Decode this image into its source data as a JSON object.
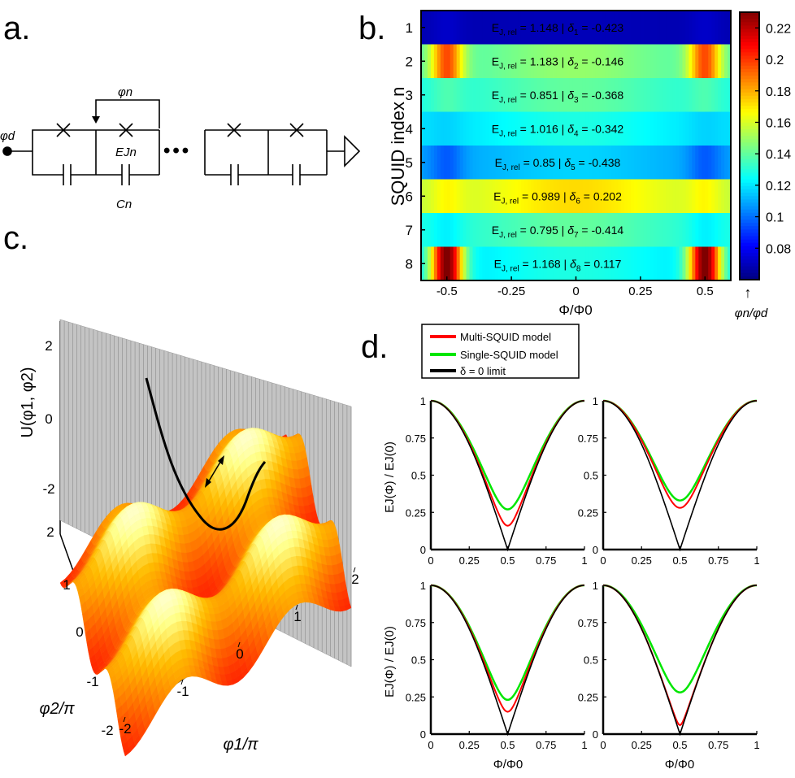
{
  "panel_labels": {
    "a": "a.",
    "b": "b.",
    "c": "c.",
    "d": "d."
  },
  "circuit": {
    "phi_d": "φd",
    "phi_n": "φn",
    "ejn": "EJn",
    "cn": "Cn",
    "dots": "•••"
  },
  "colors": {
    "multi": "#ff0000",
    "single": "#00e600",
    "delta0": "#000000"
  },
  "chart_data": [
    {
      "type": "heatmap",
      "panel": "b",
      "ylabel": "SQUID index n",
      "xlabel": "Φ/Φ0",
      "xlim": [
        -0.6,
        0.6
      ],
      "xticks": [
        "-0.5",
        "-0.25",
        "0",
        "0.25",
        "0.5"
      ],
      "rows": [
        "1",
        "2",
        "3",
        "4",
        "5",
        "6",
        "7",
        "8"
      ],
      "colorbar": {
        "label": "φn/φd",
        "range": [
          0.06,
          0.23
        ],
        "ticks": [
          "0.22",
          "0.2",
          "0.18",
          "0.16",
          "0.14",
          "0.12",
          "0.1",
          "0.08"
        ],
        "arrow": "↑"
      },
      "annotations": [
        {
          "ej": "1.148",
          "delta_sub": "1",
          "delta": "-0.423"
        },
        {
          "ej": "1.183",
          "delta_sub": "2",
          "delta": "-0.146"
        },
        {
          "ej": "0.851",
          "delta_sub": "3",
          "delta": "-0.368"
        },
        {
          "ej": "1.016",
          "delta_sub": "4",
          "delta": "-0.342"
        },
        {
          "ej": "0.85",
          "delta_sub": "5",
          "delta": "-0.438"
        },
        {
          "ej": "0.989",
          "delta_sub": "6",
          "delta": "0.202"
        },
        {
          "ej": "0.795",
          "delta_sub": "7",
          "delta": "-0.414"
        },
        {
          "ej": "1.168",
          "delta_sub": "8",
          "delta": "0.117"
        }
      ],
      "row_center_values": [
        0.068,
        0.135,
        0.128,
        0.118,
        0.108,
        0.155,
        0.128,
        0.118
      ],
      "row_peak_values": [
        0.072,
        0.195,
        0.135,
        0.115,
        0.095,
        0.165,
        0.12,
        0.23
      ]
    },
    {
      "type": "surface",
      "panel": "c",
      "zlabel": "U(φ1, φ2)",
      "xlabel": "φ1/π",
      "ylabel": "φ2/π",
      "zticks": [
        "2",
        "0",
        "-2"
      ],
      "xticks": [
        "-2",
        "-1",
        "0",
        "1",
        "2"
      ],
      "yticks": [
        "2",
        "1",
        "0",
        "-1",
        "-2"
      ]
    },
    {
      "type": "line",
      "panel": "d",
      "legend": [
        "Multi-SQUID model",
        "Single-SQUID model",
        "δ = 0 limit"
      ],
      "ylabel": "EJ(Φ) / EJ(0)",
      "xlabel": "Φ/Φ0",
      "xticks": [
        "0",
        "0.25",
        "0.5",
        "0.75",
        "1"
      ],
      "yticks": [
        "0",
        "0.25",
        "0.5",
        "0.75",
        "1"
      ],
      "xlim": [
        0,
        1
      ],
      "ylim": [
        0,
        1
      ],
      "subplots": [
        {
          "multi_min": 0.16,
          "single_min": 0.27
        },
        {
          "multi_min": 0.28,
          "single_min": 0.33
        },
        {
          "multi_min": 0.15,
          "single_min": 0.23
        },
        {
          "multi_min": 0.06,
          "single_min": 0.28
        }
      ]
    }
  ]
}
